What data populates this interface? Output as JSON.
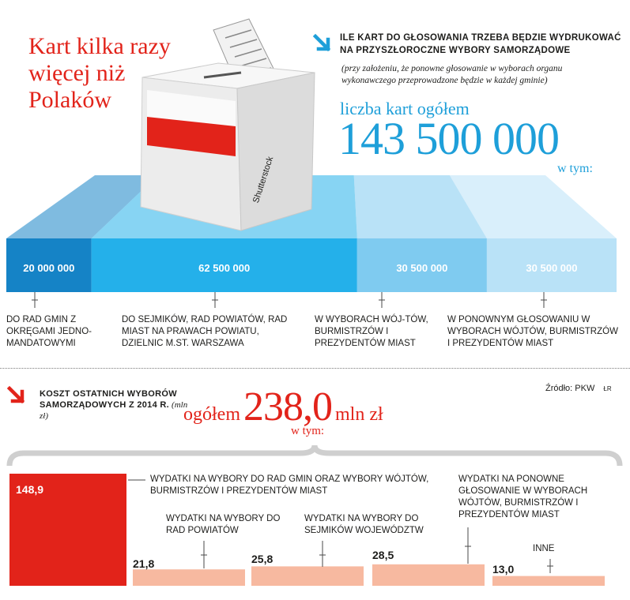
{
  "headline": "Kart kilka razy więcej niż Polaków",
  "question": "Ile kart do głosowania trzeba będzie wydrukować na przyszłoroczne wybory samorządowe",
  "note": "(przy założeniu, że ponowne głosowanie w wyborach organu wykonawczego przeprowadzone będzie w każdej gminie)",
  "ballot_total_label": "liczba kart ogółem",
  "ballot_total_value": "143 500 000",
  "ballot_wtym": "w tym:",
  "watermark": "Shutterstock",
  "colors": {
    "red": "#e2231a",
    "blue": "#1e9fd9",
    "salmon": "#f7b9a0"
  },
  "icons": [
    "arrow-down-right-icon",
    "ballot-box-icon"
  ],
  "cost_title": "Koszt ostatnich wyborów samorządowych z 2014 r.",
  "cost_unit_note": "(mln zł)",
  "source": "Źródło: PKW",
  "credit": "ŁR",
  "cost_total_label": "ogółem",
  "cost_total_value": "238,0",
  "cost_total_unit": "mln zł",
  "cost_wtym": "w tym:",
  "chart_data": [
    {
      "type": "bar",
      "title": "liczba kart ogółem 143 500 000",
      "categories": [
        "DO RAD GMIN Z OKRĘGAMI JEDNO-MANDATOWYMI",
        "DO SEJMIKÓW, RAD POWIATÓW, RAD MIAST NA PRAWACH POWIATU, DZIELNIC M.ST. WARSZAWA",
        "W WYBORACH WÓJ-TÓW, BURMISTRZÓW I PREZYDENTÓW MIAST",
        "W PONOWNYM GŁOSOWANIU W WYBORACH WÓJTÓW, BURMISTRZÓW I PREZYDENTÓW MIAST"
      ],
      "values": [
        20000000,
        62500000,
        30500000,
        30500000
      ],
      "labels": [
        "20 000 000",
        "62 500 000",
        "30 500 000",
        "30 500 000"
      ],
      "colors": [
        "#1583c6",
        "#24b0ea",
        "#7fcbf0",
        "#b9e2f7"
      ]
    },
    {
      "type": "bar",
      "title": "ogółem 238,0 mln zł",
      "categories": [
        "WYDATKI NA WYBORY DO RAD GMIN ORAZ WYBORY WÓJTÓW, BURMISTRZÓW I PREZYDENTÓW MIAST",
        "WYDATKI NA WYBORY DO RAD POWIATÓW",
        "WYDATKI NA WYBORY DO SEJMIKÓW WOJEWÓDZTW",
        "WYDATKI NA PONOWNE GŁOSOWANIE W WYBORACH WÓJTÓW, BURMISTRZÓW I PREZYDENTÓW MIAST",
        "INNE"
      ],
      "values": [
        148.9,
        21.8,
        25.8,
        28.5,
        13.0
      ],
      "labels": [
        "148,9",
        "21,8",
        "25,8",
        "28,5",
        "13,0"
      ],
      "colors": [
        "#e2231a",
        "#f7b9a0",
        "#f7b9a0",
        "#f7b9a0",
        "#f7b9a0"
      ]
    }
  ]
}
